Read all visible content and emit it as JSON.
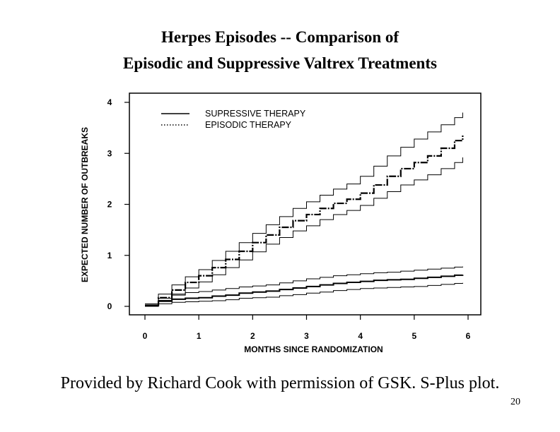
{
  "slide": {
    "title_line1": "Herpes Episodes -- Comparison of",
    "title_line2": "Episodic and Suppressive Valtrex Treatments",
    "caption": "Provided by Richard Cook with permission of GSK.  S-Plus plot.",
    "page_number": "20"
  },
  "chart_data": {
    "type": "line",
    "xlabel": "MONTHS  SINCE  RANDOMIZATION",
    "ylabel": "EXPECTED NUMBER OF OUTBREAKS",
    "xlim": [
      0,
      6
    ],
    "ylim": [
      0,
      4
    ],
    "xticks": [
      "0",
      "1",
      "2",
      "3",
      "4",
      "5",
      "6"
    ],
    "yticks": [
      "0",
      "1",
      "2",
      "3",
      "4"
    ],
    "legend": [
      {
        "label": "SUPRESSIVE THERAPY",
        "style": "solid"
      },
      {
        "label": "EPISODIC THERAPY",
        "style": "dotted"
      }
    ],
    "legend_position": "top-left",
    "x": [
      0,
      0.25,
      0.5,
      0.75,
      1.0,
      1.25,
      1.5,
      1.75,
      2.0,
      2.25,
      2.5,
      2.75,
      3.0,
      3.25,
      3.5,
      3.75,
      4.0,
      4.25,
      4.5,
      4.75,
      5.0,
      5.25,
      5.5,
      5.75,
      5.9
    ],
    "series": [
      {
        "name": "EPISODIC THERAPY",
        "style": "dash-dot",
        "values": [
          0.02,
          0.17,
          0.32,
          0.47,
          0.6,
          0.76,
          0.92,
          1.08,
          1.25,
          1.4,
          1.55,
          1.68,
          1.8,
          1.92,
          2.02,
          2.1,
          2.22,
          2.38,
          2.55,
          2.7,
          2.82,
          2.95,
          3.1,
          3.25,
          3.35
        ]
      },
      {
        "name": "EPISODIC THERAPY upper band",
        "style": "thin",
        "values": [
          0.05,
          0.24,
          0.42,
          0.58,
          0.72,
          0.9,
          1.08,
          1.25,
          1.43,
          1.6,
          1.76,
          1.92,
          2.05,
          2.18,
          2.3,
          2.4,
          2.55,
          2.75,
          2.95,
          3.12,
          3.28,
          3.42,
          3.56,
          3.7,
          3.8
        ]
      },
      {
        "name": "EPISODIC THERAPY lower band",
        "style": "thin",
        "values": [
          0.0,
          0.12,
          0.24,
          0.36,
          0.48,
          0.62,
          0.76,
          0.91,
          1.07,
          1.22,
          1.35,
          1.48,
          1.58,
          1.7,
          1.8,
          1.88,
          1.98,
          2.12,
          2.25,
          2.38,
          2.48,
          2.58,
          2.7,
          2.82,
          2.92
        ]
      },
      {
        "name": "SUPRESSIVE THERAPY",
        "style": "solid",
        "values": [
          0.02,
          0.1,
          0.14,
          0.16,
          0.17,
          0.2,
          0.22,
          0.26,
          0.28,
          0.3,
          0.33,
          0.36,
          0.39,
          0.42,
          0.45,
          0.47,
          0.49,
          0.51,
          0.52,
          0.53,
          0.55,
          0.57,
          0.59,
          0.61,
          0.62
        ]
      },
      {
        "name": "SUPRESSIVE THERAPY upper band",
        "style": "thin",
        "values": [
          0.03,
          0.16,
          0.22,
          0.27,
          0.29,
          0.32,
          0.35,
          0.38,
          0.4,
          0.42,
          0.46,
          0.5,
          0.54,
          0.57,
          0.6,
          0.62,
          0.64,
          0.66,
          0.67,
          0.69,
          0.71,
          0.73,
          0.75,
          0.77,
          0.78
        ]
      },
      {
        "name": "SUPRESSIVE THERAPY lower band",
        "style": "thin",
        "values": [
          0.0,
          0.05,
          0.08,
          0.09,
          0.1,
          0.11,
          0.13,
          0.16,
          0.17,
          0.18,
          0.21,
          0.23,
          0.26,
          0.28,
          0.31,
          0.33,
          0.35,
          0.36,
          0.37,
          0.38,
          0.39,
          0.41,
          0.43,
          0.45,
          0.46
        ]
      }
    ]
  }
}
